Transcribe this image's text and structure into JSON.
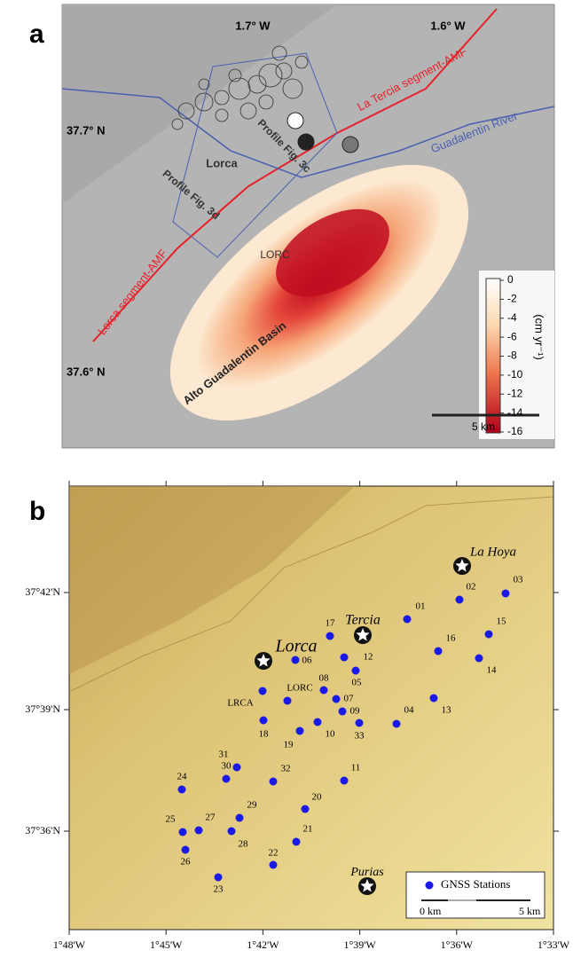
{
  "panel_a": {
    "letter": "a",
    "lon_labels": [
      "1.7° W",
      "1.6° W"
    ],
    "lat_labels": [
      "37.7° N",
      "37.6° N"
    ],
    "fault_upper": "La Tercia segment-AMF",
    "fault_lower": "Lorca segment-AMF",
    "river": "Guadalentin River",
    "town": "Lorca",
    "profile_c": "Profile Fig. 3c",
    "profile_d": "Profile Fig. 3d",
    "station": "LORC",
    "basin": "Alto Guadalentin Basin",
    "colorbar_ticks": [
      0,
      -2,
      -4,
      -6,
      -8,
      -10,
      -12,
      -14,
      -16
    ],
    "colorbar_unit": "(cm yr⁻¹)",
    "scale": "5 km"
  },
  "panel_b": {
    "letter": "b",
    "lat_labels": [
      "37°42'N",
      "37°39'N",
      "37°36'N"
    ],
    "lon_labels": [
      "1°48'W",
      "1°45'W",
      "1°42'W",
      "1°39'W",
      "1°36'W",
      "1°33'W"
    ],
    "stations": [
      "01",
      "02",
      "03",
      "04",
      "05",
      "06",
      "07",
      "08",
      "09",
      "10",
      "11",
      "12",
      "13",
      "14",
      "15",
      "16",
      "17",
      "18",
      "19",
      "20",
      "21",
      "22",
      "23",
      "24",
      "25",
      "26",
      "27",
      "28",
      "29",
      "30",
      "31",
      "32",
      "33",
      "LORC",
      "LRCA"
    ],
    "towns": [
      "La Hoya",
      "Tercia",
      "Lorca",
      "Purias"
    ],
    "legend": "GNSS Stations",
    "scale_start": "0 km",
    "scale_end": "5 km"
  }
}
